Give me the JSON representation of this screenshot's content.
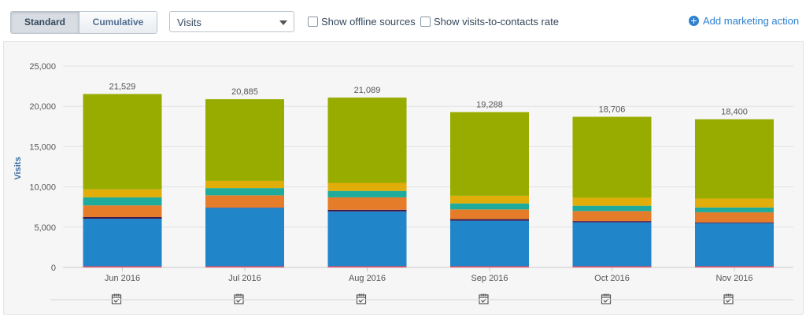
{
  "toolbar": {
    "view_options": [
      "Standard",
      "Cumulative"
    ],
    "active_view": "Standard",
    "metric_select": "Visits",
    "offline_sources_label": "Show offline sources",
    "visits_to_contacts_label": "Show visits-to-contacts rate",
    "add_marketing_action_label": "Add marketing action"
  },
  "colors": {
    "accent": "#2d80d0",
    "panel_bg": "#f6f6f6"
  },
  "chart_data": {
    "type": "bar",
    "stacked": true,
    "ylabel": "Visits",
    "xlabel": "",
    "ylim": [
      0,
      25000
    ],
    "yticks": [
      0,
      5000,
      10000,
      15000,
      20000,
      25000
    ],
    "ytick_labels": [
      "0",
      "5,000",
      "10,000",
      "15,000",
      "20,000",
      "25,000"
    ],
    "categories": [
      "Jun 2016",
      "Jul 2016",
      "Aug 2016",
      "Sep 2016",
      "Oct 2016",
      "Nov 2016"
    ],
    "totals": [
      21529,
      20885,
      21089,
      19288,
      18706,
      18400
    ],
    "total_labels": [
      "21,529",
      "20,885",
      "21,089",
      "19,288",
      "18,706",
      "18,400"
    ],
    "grid": true,
    "legend": "none",
    "series": [
      {
        "color": "#e84c61",
        "values": [
          150,
          150,
          150,
          150,
          150,
          150
        ]
      },
      {
        "color": "#2185c9",
        "values": [
          5900,
          7250,
          6800,
          5650,
          5450,
          5350
        ]
      },
      {
        "color": "#3d1a4f",
        "values": [
          200,
          50,
          200,
          200,
          150,
          100
        ]
      },
      {
        "color": "#e57c29",
        "values": [
          1450,
          1500,
          1550,
          1200,
          1250,
          1250
        ]
      },
      {
        "color": "#1fab9b",
        "values": [
          1000,
          900,
          800,
          750,
          650,
          600
        ]
      },
      {
        "color": "#e0ad09",
        "values": [
          1000,
          900,
          1000,
          950,
          1000,
          1100
        ]
      },
      {
        "color": "#98ac00",
        "values": [
          11829,
          10135,
          10589,
          10388,
          10056,
          9850
        ]
      }
    ],
    "marketing_action_icon": "calendar-check-icon"
  }
}
